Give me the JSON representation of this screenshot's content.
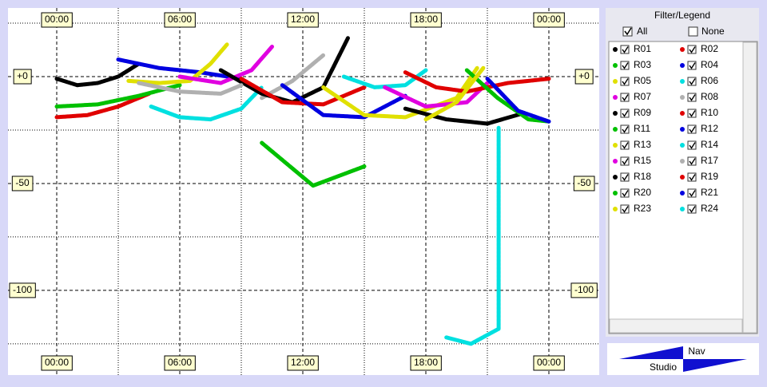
{
  "chart_data": {
    "type": "line",
    "xlim": [
      -2.377,
      26.455
    ],
    "ylim": [
      -139.6,
      32.1
    ],
    "xticks": [
      {
        "value": 0,
        "label": "00:00"
      },
      {
        "value": 6,
        "label": "06:00"
      },
      {
        "value": 12,
        "label": "12:00"
      },
      {
        "value": 18,
        "label": "18:00"
      },
      {
        "value": 24,
        "label": "00:00"
      }
    ],
    "yticks": [
      {
        "value": 0,
        "label": "+0"
      },
      -50,
      -100
    ],
    "x_minor_grid": [
      3,
      9,
      15,
      21
    ],
    "y_minor_grid": [
      25,
      -25,
      -75,
      -125
    ],
    "grid": true,
    "series": [
      {
        "name": "R01",
        "color": "#000000",
        "x": [
          0,
          1,
          2,
          3,
          4
        ],
        "values": [
          -1,
          -4,
          -3,
          0,
          6
        ]
      },
      {
        "name": "R02",
        "color": "#e00000",
        "x": [
          0,
          1.5,
          3,
          4.5
        ],
        "values": [
          -19,
          -18,
          -14,
          -8
        ]
      },
      {
        "name": "R03",
        "color": "#00c000",
        "x": [
          0,
          2,
          4,
          6
        ],
        "values": [
          -14,
          -13,
          -9,
          -4
        ]
      },
      {
        "name": "R04",
        "color": "#0000e0",
        "x": [
          3,
          5,
          7,
          9
        ],
        "values": [
          8,
          4,
          2,
          -1
        ]
      },
      {
        "name": "R05",
        "color": "#e0e000",
        "x": [
          3.5,
          5,
          6.5,
          7.5,
          8.3
        ],
        "values": [
          -2,
          -3,
          -2,
          6,
          15
        ]
      },
      {
        "name": "R06",
        "color": "#00e0e0",
        "x": [
          4.6,
          6,
          7.5,
          9,
          10
        ],
        "values": [
          -14,
          -19,
          -20,
          -15,
          -5
        ]
      },
      {
        "name": "R07",
        "color": "#e000e0",
        "x": [
          6,
          8,
          9.5,
          10.5
        ],
        "values": [
          0,
          -3,
          3,
          14
        ]
      },
      {
        "name": "R08",
        "color": "#b0b0b0",
        "x": [
          10,
          11.5,
          13
        ],
        "values": [
          -10,
          -2,
          10
        ]
      },
      {
        "name": "R09",
        "color": "#000000",
        "x": [
          8,
          10,
          11.5,
          13,
          14.2
        ],
        "values": [
          3,
          -8,
          -12,
          -5,
          18
        ]
      },
      {
        "name": "R10",
        "color": "#e00000",
        "x": [
          9,
          11,
          13,
          15
        ],
        "values": [
          -1,
          -12,
          -13,
          -5
        ]
      },
      {
        "name": "R11",
        "color": "#00c000",
        "x": [
          10,
          12.5,
          15
        ],
        "values": [
          -31,
          -51,
          -42
        ]
      },
      {
        "name": "R12",
        "color": "#0000e0",
        "x": [
          11,
          13,
          15,
          17
        ],
        "values": [
          -4,
          -18,
          -19,
          -9
        ]
      },
      {
        "name": "R13",
        "color": "#e0e000",
        "x": [
          13,
          15,
          17,
          19.5,
          20.5
        ],
        "values": [
          -5,
          -18,
          -19,
          -10,
          4
        ]
      },
      {
        "name": "R14",
        "color": "#00e0e0",
        "x": [
          14,
          15.5,
          17,
          18
        ],
        "values": [
          0,
          -5,
          -4,
          3
        ]
      },
      {
        "name": "R15",
        "color": "#e000e0",
        "x": [
          16,
          18,
          20,
          21
        ],
        "values": [
          -5,
          -14,
          -12,
          -3
        ]
      },
      {
        "name": "R17",
        "color": "#b0b0b0",
        "x": [
          4,
          6,
          8,
          9
        ],
        "values": [
          -3,
          -7,
          -8,
          -4
        ]
      },
      {
        "name": "R18",
        "color": "#000000",
        "x": [
          17,
          19,
          21,
          22.8
        ],
        "values": [
          -15,
          -20,
          -22,
          -17
        ]
      },
      {
        "name": "R19",
        "color": "#e00000",
        "x": [
          17,
          18.5,
          20,
          22,
          24
        ],
        "values": [
          2,
          -5,
          -7,
          -3,
          -1
        ]
      },
      {
        "name": "R20",
        "color": "#00c000",
        "x": [
          20,
          21.5,
          23,
          24
        ],
        "values": [
          3,
          -10,
          -20,
          -21
        ]
      },
      {
        "name": "R21",
        "color": "#0000e0",
        "x": [
          21,
          22.5,
          24
        ],
        "values": [
          -1,
          -16,
          -21
        ]
      },
      {
        "name": "R23",
        "color": "#e0e000",
        "x": [
          18,
          19.5,
          20.8
        ],
        "values": [
          -20,
          -12,
          4
        ]
      },
      {
        "name": "R24",
        "color": "#00e0e0",
        "x": [
          19,
          20.2,
          21.55,
          21.55
        ],
        "values": [
          -122,
          -125,
          -118,
          -24
        ]
      }
    ]
  },
  "panel": {
    "title": "Filter/Legend",
    "all": "All",
    "none": "None"
  },
  "logo": {
    "top": "Nav",
    "bottom": "Studio"
  }
}
